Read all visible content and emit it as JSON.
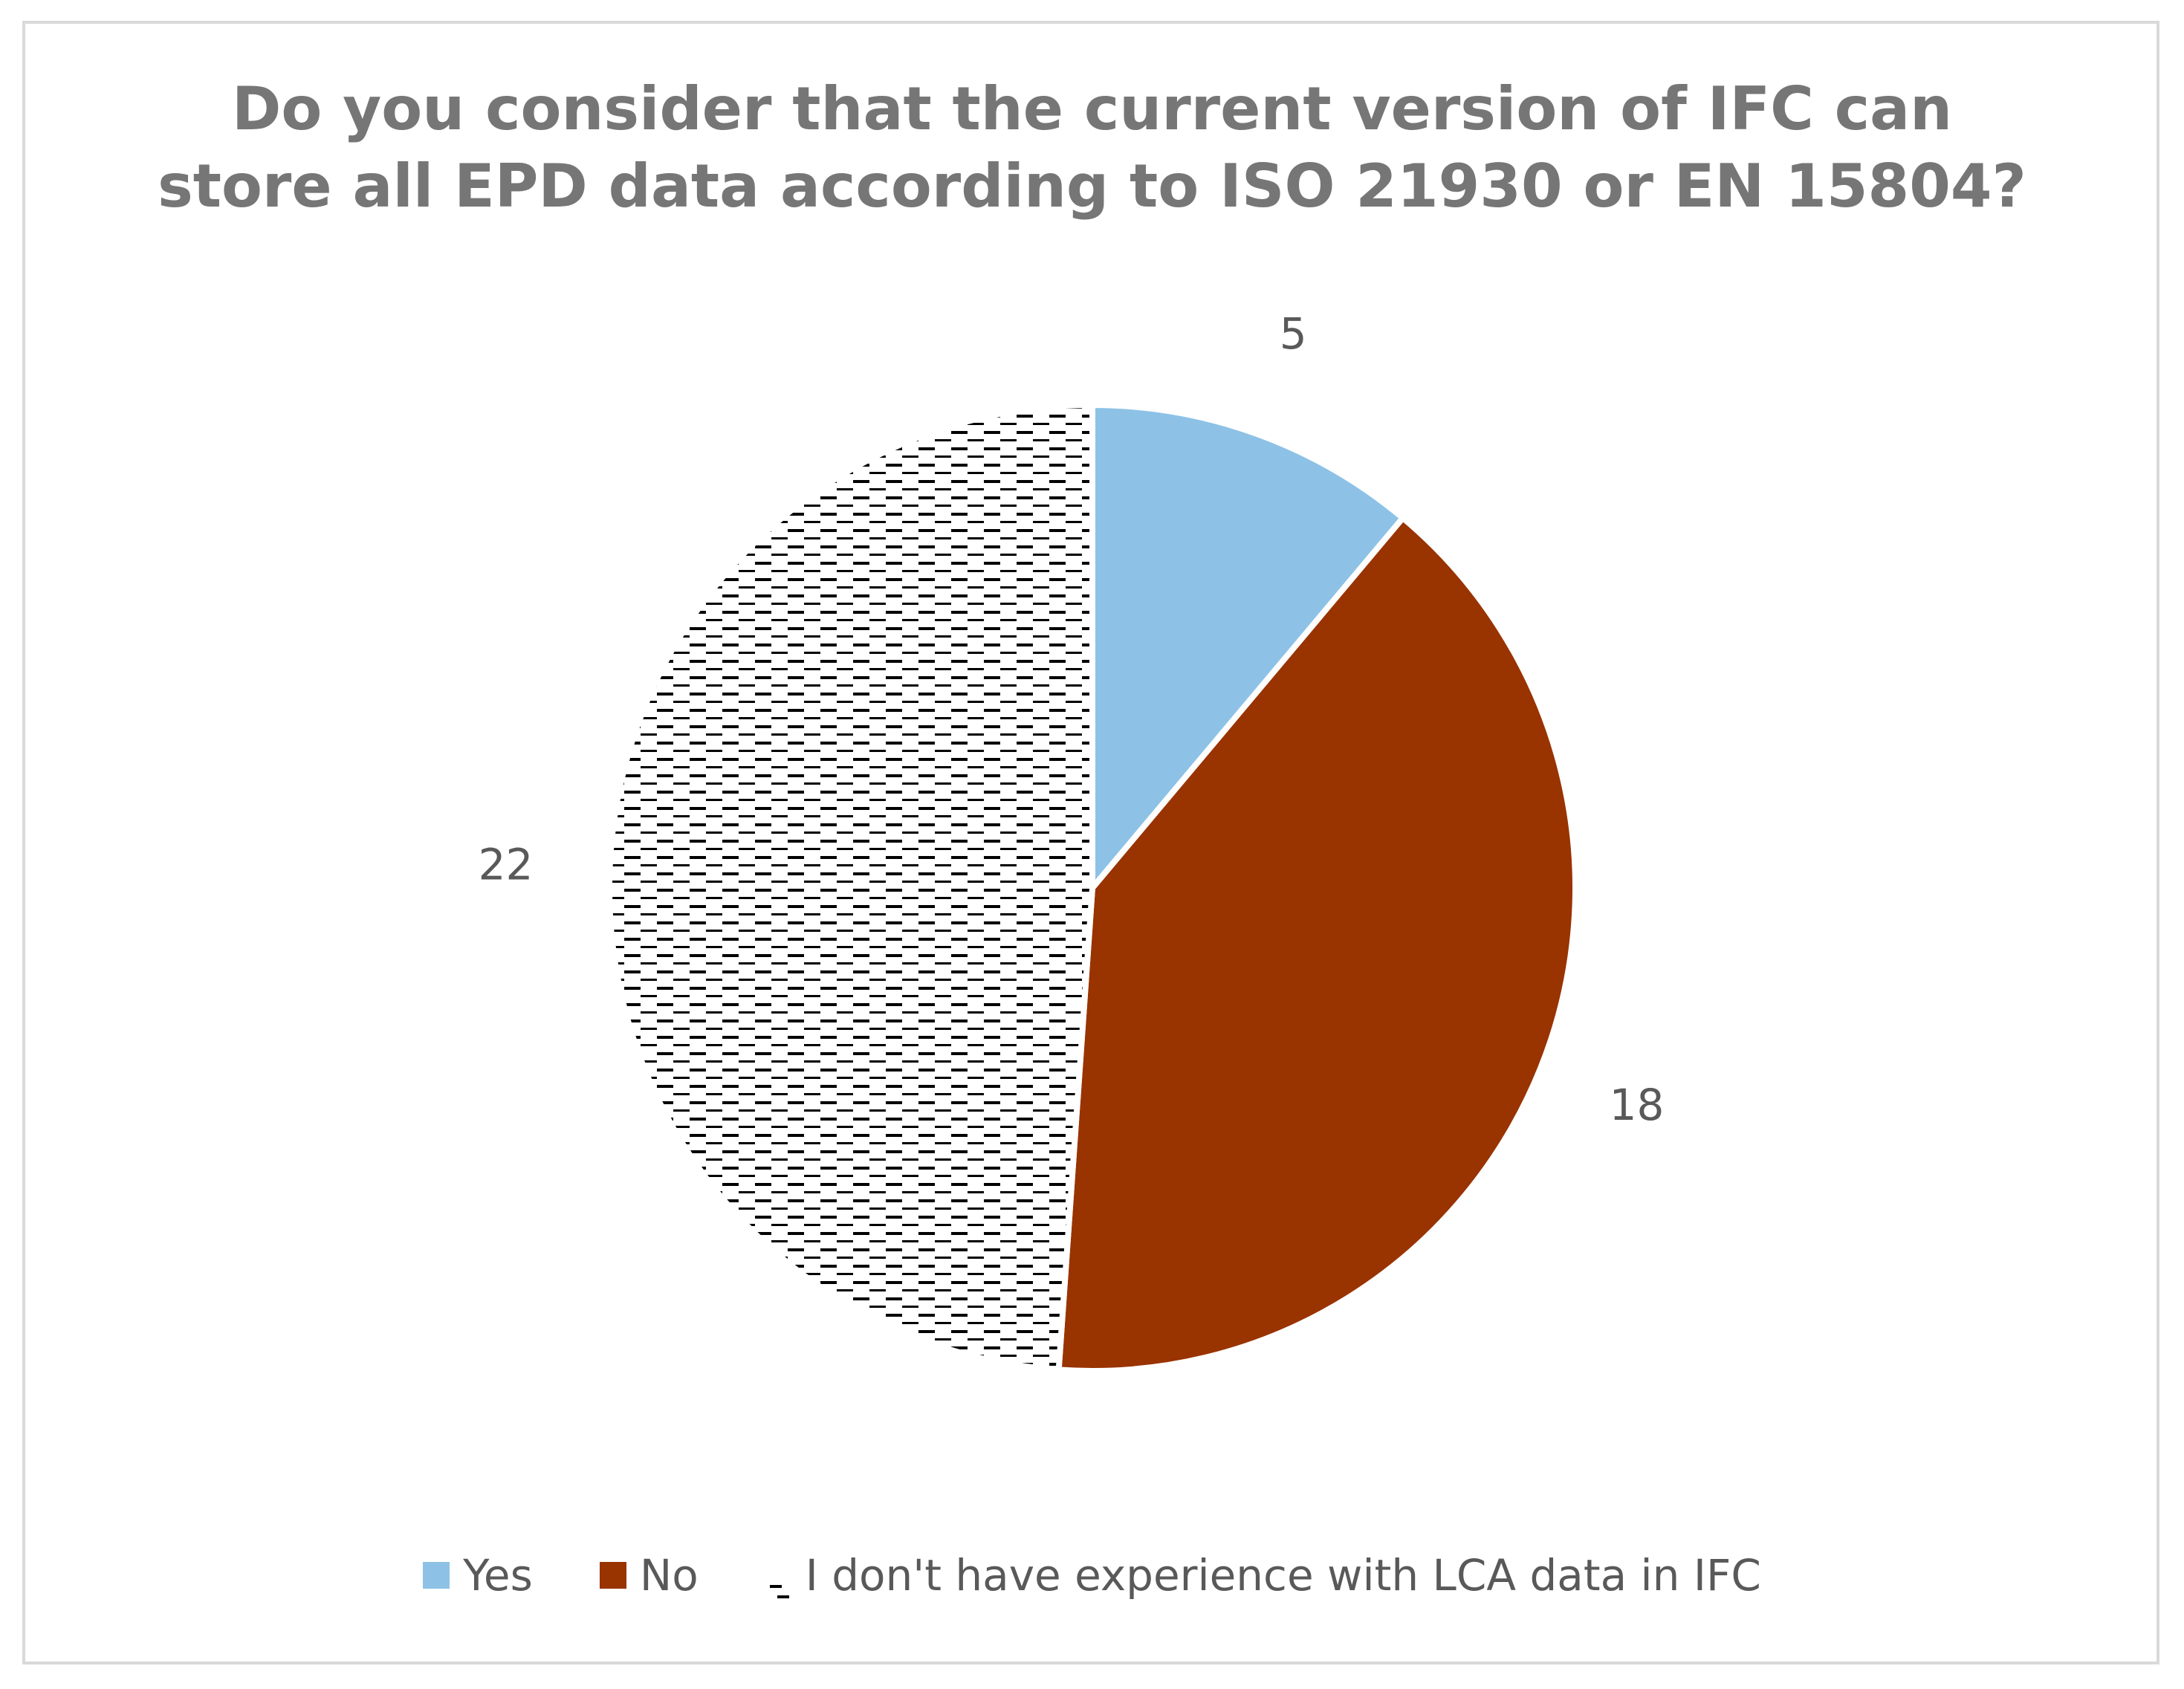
{
  "chart_data": {
    "type": "pie",
    "title_lines": [
      "Do you consider that the current version of IFC can",
      "store all EPD data according to ISO 21930 or EN 15804?"
    ],
    "slices": [
      {
        "name": "Yes",
        "value": 5,
        "color": "#8dc2e6",
        "fill": "solid"
      },
      {
        "name": "No",
        "value": 18,
        "color": "#993300",
        "fill": "solid"
      },
      {
        "name": "I don't have experience with LCA data in IFC",
        "value": 22,
        "color": "#000000",
        "fill": "dash-pattern"
      }
    ],
    "start_angle_deg": 0,
    "direction": "clockwise",
    "data_labels_shown": true,
    "legend_placement": "bottom"
  }
}
